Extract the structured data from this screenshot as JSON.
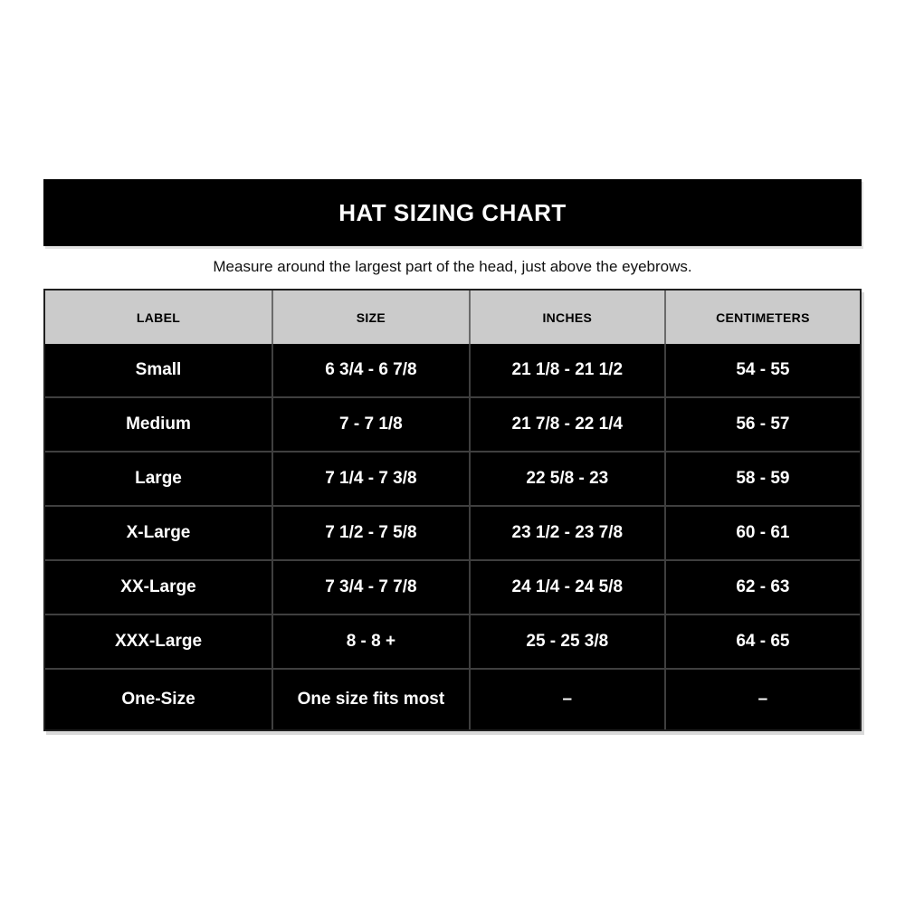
{
  "colors": {
    "title_bar_bg": "#000000",
    "title_text": "#ffffff",
    "header_row_bg": "#cbcbcb",
    "header_text": "#000000",
    "body_row_bg": "#000000",
    "body_text": "#ffffff",
    "grid_line": "#3f3f3f",
    "page_bg": "#ffffff"
  },
  "chart_data": {
    "type": "table",
    "title": "HAT SIZING CHART",
    "subtitle": "Measure around the largest part of the head, just above the eyebrows.",
    "columns": [
      "LABEL",
      "SIZE",
      "INCHES",
      "CENTIMETERS"
    ],
    "rows": [
      [
        "Small",
        "6 3/4 - 6 7/8",
        "21 1/8 - 21 1/2",
        "54 - 55"
      ],
      [
        "Medium",
        "7 - 7 1/8",
        "21 7/8 - 22 1/4",
        "56 - 57"
      ],
      [
        "Large",
        "7 1/4 - 7 3/8",
        "22 5/8 - 23",
        "58 - 59"
      ],
      [
        "X-Large",
        "7 1/2 - 7 5/8",
        "23 1/2 - 23 7/8",
        "60 - 61"
      ],
      [
        "XX-Large",
        "7 3/4 - 7 7/8",
        "24 1/4 - 24 5/8",
        "62 - 63"
      ],
      [
        "XXX-Large",
        "8 - 8 +",
        "25 - 25 3/8",
        "64 - 65"
      ],
      [
        "One-Size",
        "One size fits most",
        "–",
        "–"
      ]
    ]
  }
}
